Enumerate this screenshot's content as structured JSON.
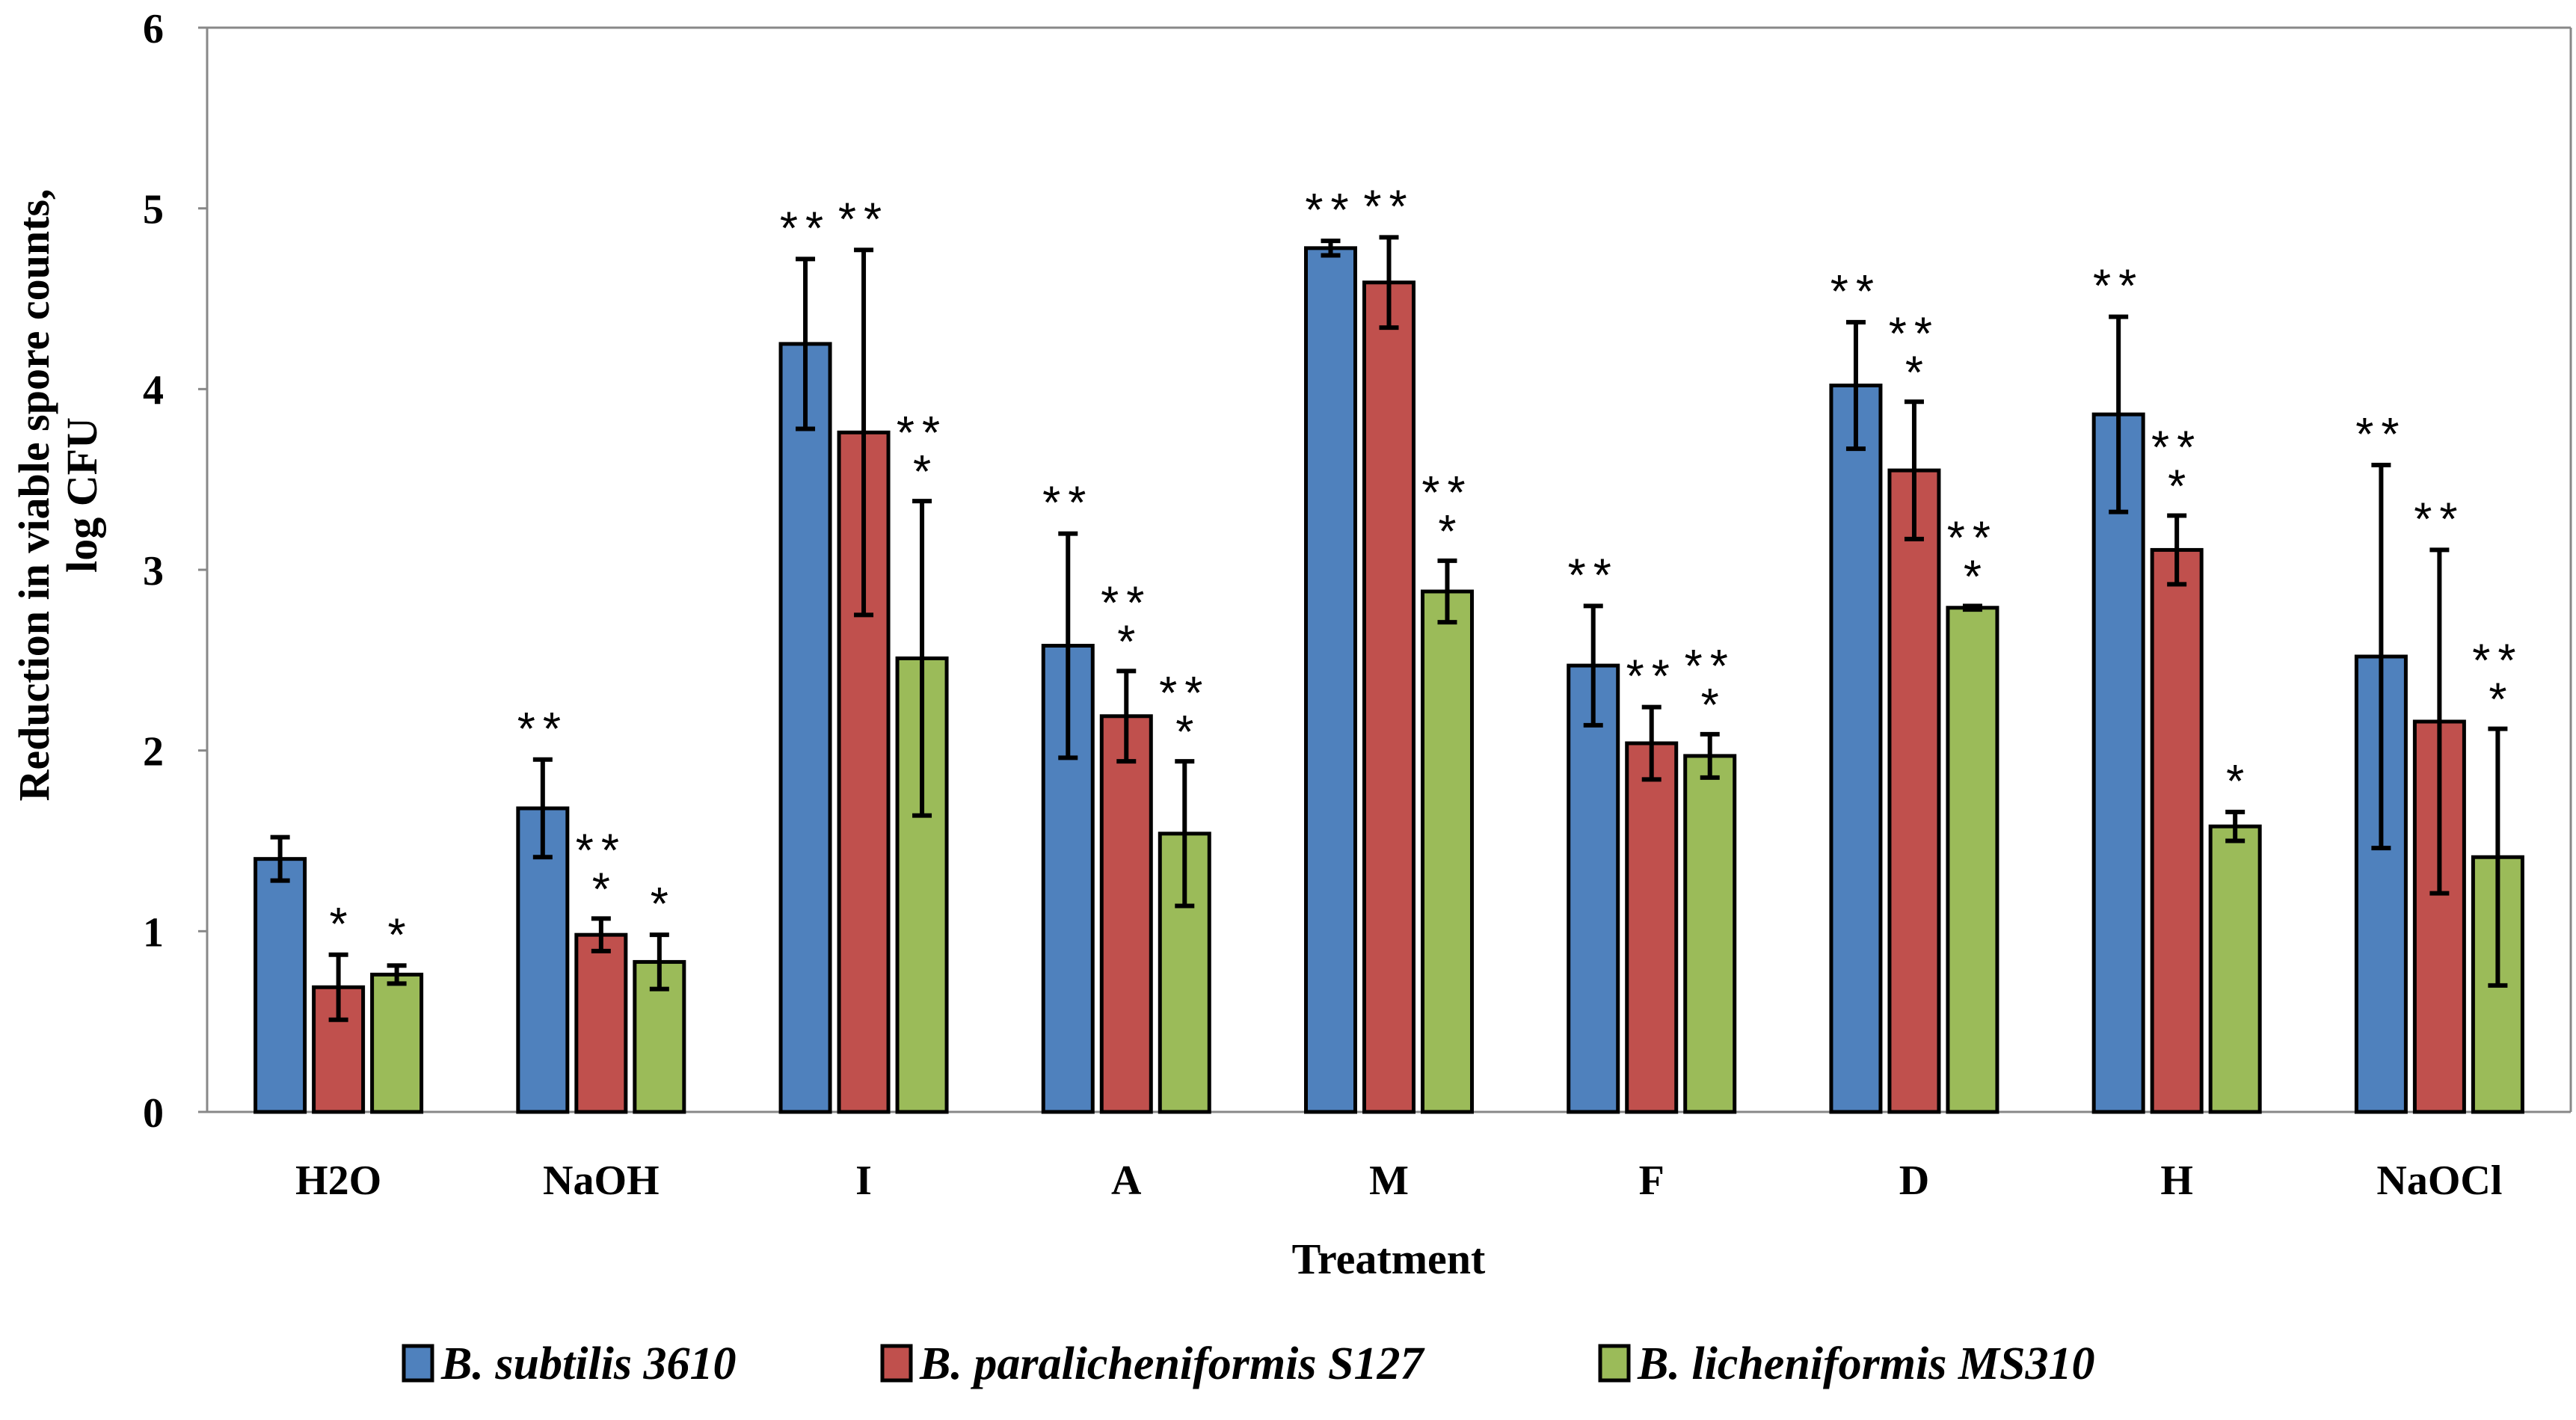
{
  "chart_data": {
    "type": "bar",
    "title": "",
    "xlabel": "Treatment",
    "ylabel_lines": [
      "Reduction in  viable spore  counts,",
      "log CFU"
    ],
    "ylim": [
      0,
      6
    ],
    "yticks": [
      "0",
      "1",
      "2",
      "3",
      "4",
      "5",
      "6"
    ],
    "grid": false,
    "legend_position": "bottom",
    "categories": [
      "H2O",
      "NaOH",
      "I",
      "A",
      "M",
      "F",
      "D",
      "H",
      "NaOCl"
    ],
    "series": [
      {
        "name": "B. subtilis 3610",
        "color": "#4F81BD",
        "values": [
          1.4,
          1.68,
          4.25,
          2.58,
          4.78,
          2.47,
          4.02,
          3.86,
          2.52
        ],
        "errors": [
          0.12,
          0.27,
          0.47,
          0.62,
          0.04,
          0.33,
          0.35,
          0.54,
          1.06
        ],
        "annotations": [
          "",
          "**",
          "**",
          "**",
          "**",
          "**",
          "**",
          "**",
          "**"
        ]
      },
      {
        "name": "B. paralicheniformis S127",
        "color": "#C0504D",
        "values": [
          0.69,
          0.98,
          3.76,
          2.19,
          4.59,
          2.04,
          3.55,
          3.11,
          2.16
        ],
        "errors": [
          0.18,
          0.09,
          1.01,
          0.25,
          0.25,
          0.2,
          0.38,
          0.19,
          0.95
        ],
        "annotations": [
          "*",
          "***",
          "**",
          "***",
          "**",
          "**",
          "***",
          "***",
          "**"
        ]
      },
      {
        "name": "B. licheniformis MS310",
        "color": "#9BBB59",
        "values": [
          0.76,
          0.83,
          2.51,
          1.54,
          2.88,
          1.97,
          2.79,
          1.58,
          1.41
        ],
        "errors": [
          0.05,
          0.15,
          0.87,
          0.4,
          0.17,
          0.12,
          0.01,
          0.08,
          0.71
        ],
        "annotations": [
          "*",
          "*",
          "***",
          "***",
          "***",
          "***",
          "***",
          "*",
          "***"
        ]
      }
    ]
  }
}
